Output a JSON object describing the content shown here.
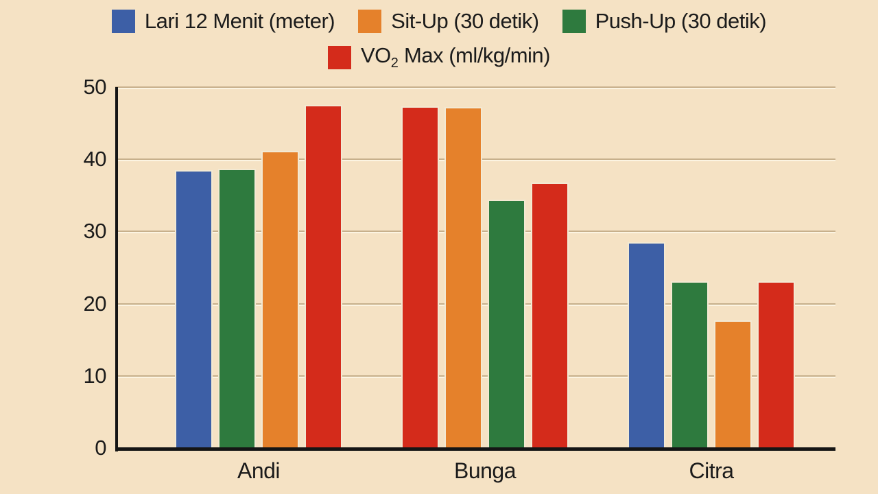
{
  "legend": {
    "items": [
      {
        "label": "Lari 12 Menit (meter)",
        "color_key": "blue"
      },
      {
        "label": "Sit-Up (30 detik)",
        "color_key": "orange"
      },
      {
        "label": "Push-Up (30 detik)",
        "color_key": "green"
      },
      {
        "label_prefix": "VO",
        "label_sub": "2",
        "label_suffix": " Max (ml/kg/min)",
        "color_key": "red"
      }
    ]
  },
  "chart_data": {
    "type": "bar",
    "title": "",
    "xlabel": "",
    "ylabel": "",
    "categories": [
      "Andi",
      "Bunga",
      "Citra"
    ],
    "series_legend": [
      "Lari 12 Menit (meter)",
      "Sit-Up (30 detik)",
      "Push-Up (30 detik)",
      "VO2 Max (ml/kg/min)"
    ],
    "groups": [
      {
        "category": "Andi",
        "bars": [
          {
            "series": "Lari 12 Menit (meter)",
            "color_key": "blue",
            "value": 38.5
          },
          {
            "series": "Push-Up (30 detik)",
            "color_key": "green",
            "value": 38.7
          },
          {
            "series": "Sit-Up (30 detik)",
            "color_key": "orange",
            "value": 41.2
          },
          {
            "series": "VO2 Max (ml/kg/min)",
            "color_key": "red",
            "value": 47.5
          }
        ]
      },
      {
        "category": "Bunga",
        "bars": [
          {
            "series": "VO2 Max (ml/kg/min)",
            "color_key": "red",
            "value": 47.3
          },
          {
            "series": "Sit-Up (30 detik)",
            "color_key": "orange",
            "value": 47.2
          },
          {
            "series": "Push-Up (30 detik)",
            "color_key": "green",
            "value": 34.4
          },
          {
            "series": "VO2 Max (ml/kg/min)",
            "color_key": "red",
            "value": 36.8
          }
        ]
      },
      {
        "category": "Citra",
        "bars": [
          {
            "series": "Lari 12 Menit (meter)",
            "color_key": "blue",
            "value": 28.5
          },
          {
            "series": "Push-Up (30 detik)",
            "color_key": "green",
            "value": 23.1
          },
          {
            "series": "Sit-Up (30 detik)",
            "color_key": "orange",
            "value": 17.7
          },
          {
            "series": "VO2 Max (ml/kg/min)",
            "color_key": "red",
            "value": 23.1
          }
        ]
      }
    ],
    "y_ticks": [
      0,
      10,
      20,
      30,
      40,
      50
    ],
    "ylim": [
      0,
      50
    ],
    "grid": true,
    "legend_position": "top",
    "colors": {
      "blue": "#3d5fa6",
      "orange": "#e5812b",
      "green": "#2e7a3e",
      "red": "#d42b1b"
    },
    "background": "#f5e2c4"
  }
}
